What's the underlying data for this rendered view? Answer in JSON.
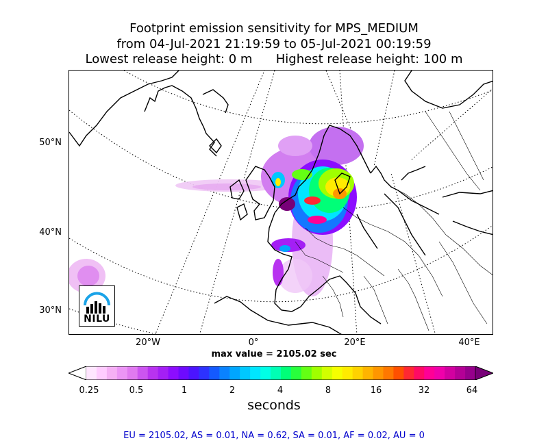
{
  "title": {
    "line1": "Footprint emission sensitivity for MPS_MEDIUM",
    "line2": "from 04-Jul-2021 21:19:59 to 05-Jul-2021 00:19:59",
    "line3": "Lowest release height: 0 m      Highest release height: 100 m"
  },
  "map": {
    "lat_labels": [
      "50°N",
      "40°N",
      "30°N"
    ],
    "lon_labels": [
      "20°W",
      "0°",
      "20°E",
      "40°E"
    ]
  },
  "max_value": "max value = 2105.02 sec",
  "colorbar": {
    "ticks": [
      "0.25",
      "0.5",
      "1",
      "2",
      "4",
      "8",
      "16",
      "32",
      "64"
    ],
    "units": "seconds",
    "colors": [
      "#ffffff",
      "#ffe6ff",
      "#ffccff",
      "#f5b0f5",
      "#eb95f5",
      "#e07af0",
      "#cc55f0",
      "#b833f0",
      "#a41ff5",
      "#8c0dff",
      "#6e0aff",
      "#4b14ff",
      "#2d32ff",
      "#145aff",
      "#0a82ff",
      "#00a6ff",
      "#00c8ff",
      "#00e6ff",
      "#00ffe6",
      "#00ffb4",
      "#00ff78",
      "#28ff3c",
      "#64ff14",
      "#a0ff00",
      "#d2ff00",
      "#f5ff00",
      "#ffeb00",
      "#ffd200",
      "#ffb400",
      "#ff9600",
      "#ff7800",
      "#ff5000",
      "#ff2832",
      "#ff0a64",
      "#ff0096",
      "#f000aa",
      "#d200a0",
      "#b40096",
      "#96008c",
      "#780078"
    ]
  },
  "footer": "EU = 2105.02,  AS = 0.01,  NA = 0.62,  SA = 0.01,  AF = 0.02,  AU = 0",
  "logo": {
    "text": "NILU"
  },
  "colors": {
    "footer_text": "#0000cc",
    "logo_arc": "#1aa3e8"
  }
}
